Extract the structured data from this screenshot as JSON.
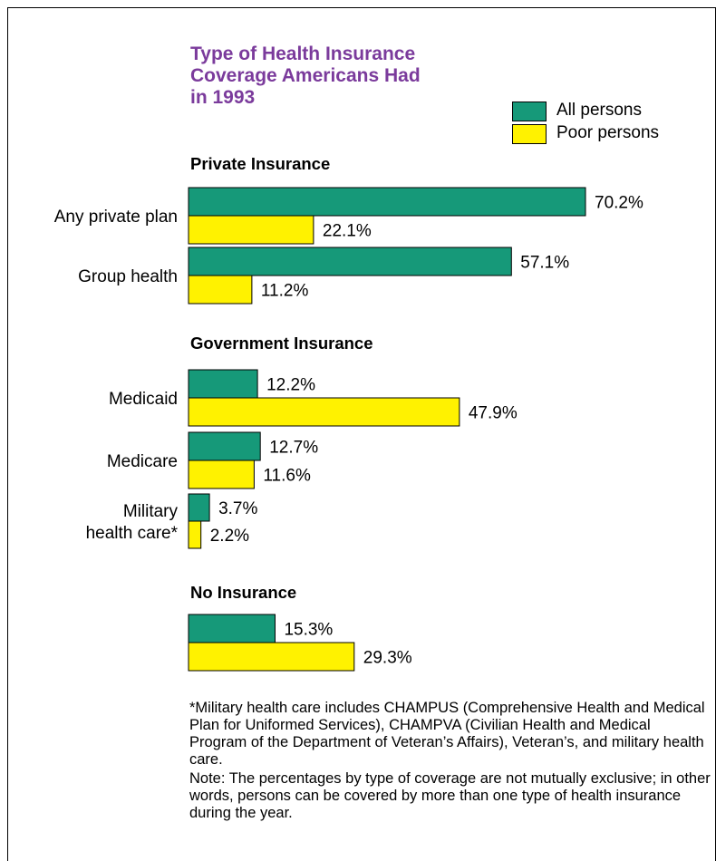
{
  "chart_data": {
    "type": "bar",
    "orientation": "horizontal",
    "title": "Type of Health Insurance\nCoverage Americans Had\nin 1993",
    "legend": {
      "placement": "top-right",
      "items": [
        {
          "name": "All persons",
          "color": "#169979"
        },
        {
          "name": "Poor persons",
          "color": "#fff200"
        }
      ]
    },
    "groups": [
      {
        "heading": "Private Insurance",
        "categories": [
          {
            "label": "Any private plan",
            "values": [
              70.2,
              22.1
            ],
            "value_labels": [
              "70.2%",
              "22.1%"
            ]
          },
          {
            "label": "Group health",
            "values": [
              57.1,
              11.2
            ],
            "value_labels": [
              "57.1%",
              "11.2%"
            ]
          }
        ]
      },
      {
        "heading": "Government Insurance",
        "categories": [
          {
            "label": "Medicaid",
            "values": [
              12.2,
              47.9
            ],
            "value_labels": [
              "12.2%",
              "47.9%"
            ]
          },
          {
            "label": "Medicare",
            "values": [
              12.7,
              11.6
            ],
            "value_labels": [
              "12.7%",
              "11.6%"
            ]
          },
          {
            "label": "Military\nhealth care*",
            "values": [
              3.7,
              2.2
            ],
            "value_labels": [
              "3.7%",
              "2.2%"
            ]
          }
        ]
      },
      {
        "heading": "No Insurance",
        "categories": [
          {
            "label": "",
            "values": [
              15.3,
              29.3
            ],
            "value_labels": [
              "15.3%",
              "29.3%"
            ]
          }
        ]
      }
    ],
    "xlim": [
      0,
      70.2
    ],
    "grid": false
  },
  "footnote": "*Military health care includes CHAMPUS (Comprehensive Health and Medical Plan for Uniformed Services), CHAMPVA (Civilian Health and Medical Program of the Department of Veteran’s Affairs), Veteran’s, and military health care.",
  "note": "Note:  The percentages by type of coverage are not mutually exclusive; in other words, persons can be covered by more than one type of health insurance during the year."
}
